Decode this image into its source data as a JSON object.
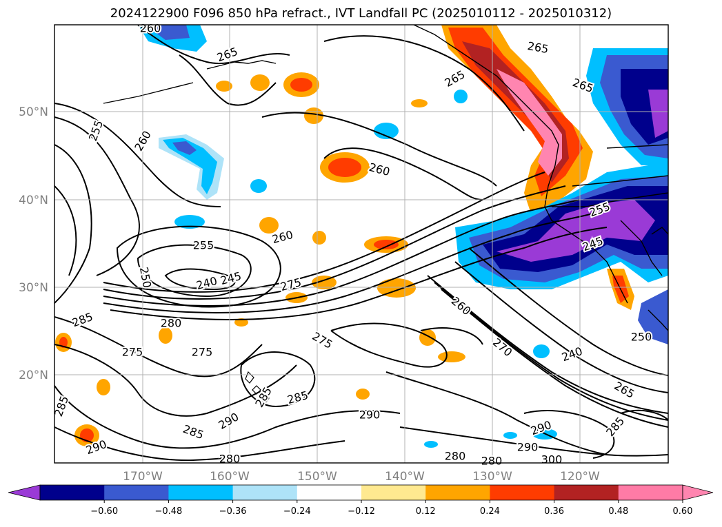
{
  "title": "2024122900 F096 850 hPa refract., IVT Landfall PC (2025010112 - 2025010312)",
  "lat_labels": [
    "50°N",
    "40°N",
    "30°N",
    "20°N"
  ],
  "lat_values": [
    50,
    40,
    30,
    20
  ],
  "lon_labels": [
    "170°W",
    "160°W",
    "150°W",
    "140°W",
    "130°W",
    "120°W"
  ],
  "lon_values": [
    -170,
    -160,
    -150,
    -140,
    -130,
    -120
  ],
  "colorbar": {
    "ticks": [
      "−0.60",
      "−0.48",
      "−0.36",
      "−0.24",
      "−0.12",
      "0.12",
      "0.24",
      "0.36",
      "0.48",
      "0.60"
    ],
    "colors": [
      "#9a3ad6",
      "#00008c",
      "#3a5ad0",
      "#00bfff",
      "#aee3f8",
      "#ffffff",
      "#ffe990",
      "#ffa500",
      "#ff3c00",
      "#b22222",
      "#ff7ba6",
      "#ff85b0"
    ]
  },
  "contour_labels": [
    "260",
    "265",
    "265",
    "265",
    "255",
    "260",
    "260",
    "265",
    "260",
    "255",
    "250",
    "240",
    "245",
    "275",
    "280",
    "285",
    "275",
    "275",
    "275",
    "285",
    "285",
    "290",
    "285",
    "290",
    "280",
    "290",
    "280",
    "290",
    "260",
    "270",
    "240",
    "265",
    "285",
    "290",
    "280",
    "300",
    "285",
    "250",
    "245",
    "255"
  ]
}
